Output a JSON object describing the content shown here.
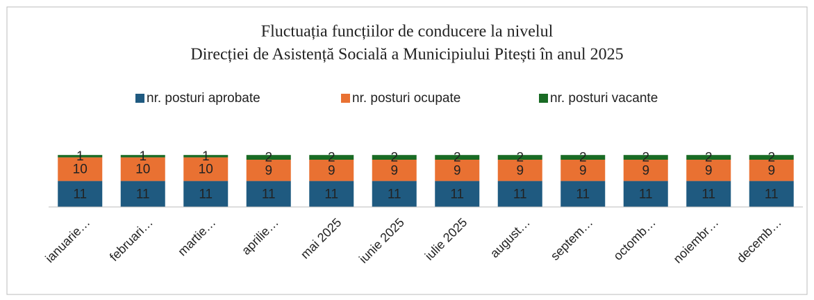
{
  "chart_data": {
    "type": "stacked_bar",
    "title": [
      "Fluctuația funcțiilor de conducere   la nivelul",
      "Direcției de Asistență Socială a Municipiului Pitești în anul 2025"
    ],
    "categories": [
      "ianuarie…",
      "februari…",
      "martie…",
      "aprilie…",
      "mai 2025",
      "iunie 2025",
      "iulie 2025",
      "august…",
      "septem…",
      "octomb…",
      "noiembr…",
      "decemb…"
    ],
    "series": [
      {
        "name": "nr. posturi aprobate",
        "color": "#1f5a80",
        "values": [
          11,
          11,
          11,
          11,
          11,
          11,
          11,
          11,
          11,
          11,
          11,
          11
        ]
      },
      {
        "name": "nr. posturi ocupate",
        "color": "#e97132",
        "values": [
          10,
          10,
          10,
          9,
          9,
          9,
          9,
          9,
          9,
          9,
          9,
          9
        ]
      },
      {
        "name": "nr. posturi vacante",
        "color": "#196b24",
        "values": [
          1,
          1,
          1,
          2,
          2,
          2,
          2,
          2,
          2,
          2,
          2,
          2
        ]
      }
    ],
    "legend": "top"
  }
}
